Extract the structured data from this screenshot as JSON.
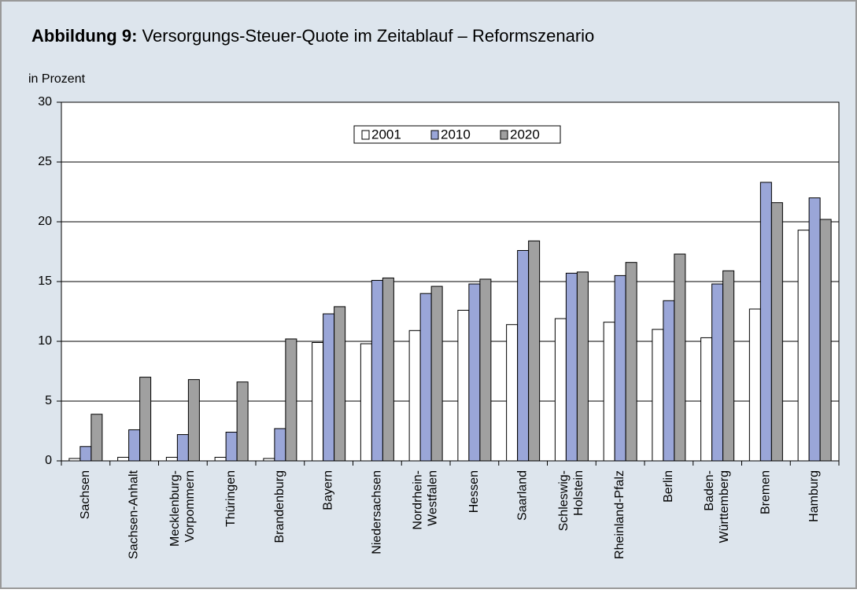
{
  "chart_data": {
    "type": "bar",
    "title_prefix": "Abbildung 9:",
    "title": "Versorgungs-Steuer-Quote im Zeitablauf – Reformszenario",
    "y_label": "in Prozent",
    "categories": [
      "Sachsen",
      "Sachsen-Anhalt",
      "Mecklenburg-\nVorpommern",
      "Thüringen",
      "Brandenburg",
      "Bayern",
      "Niedersachsen",
      "Nordrhein-\nWestfalen",
      "Hessen",
      "Saarland",
      "Schleswig-\nHolstein",
      "Rheinland-Pfalz",
      "Berlin",
      "Baden-\nWürttemberg",
      "Bremen",
      "Hamburg"
    ],
    "series": [
      {
        "name": "2001",
        "color": "#ffffff",
        "values": [
          0.2,
          0.3,
          0.3,
          0.3,
          0.2,
          9.9,
          9.8,
          10.9,
          12.6,
          11.4,
          11.9,
          11.6,
          11.0,
          10.3,
          12.7,
          19.3
        ]
      },
      {
        "name": "2010",
        "color": "#9aa6d8",
        "values": [
          1.2,
          2.6,
          2.2,
          2.4,
          2.7,
          12.3,
          15.1,
          14.0,
          14.8,
          17.6,
          15.7,
          15.5,
          13.4,
          14.8,
          23.3,
          22.0
        ]
      },
      {
        "name": "2020",
        "color": "#a0a0a0",
        "values": [
          3.9,
          7.0,
          6.8,
          6.6,
          10.2,
          12.9,
          15.3,
          14.6,
          15.2,
          18.4,
          15.8,
          16.6,
          17.3,
          15.9,
          21.6,
          20.2
        ]
      }
    ],
    "ylim": [
      0,
      30
    ],
    "yticks": [
      0,
      5,
      10,
      15,
      20,
      25,
      30
    ],
    "grid": true,
    "legend": "top"
  }
}
